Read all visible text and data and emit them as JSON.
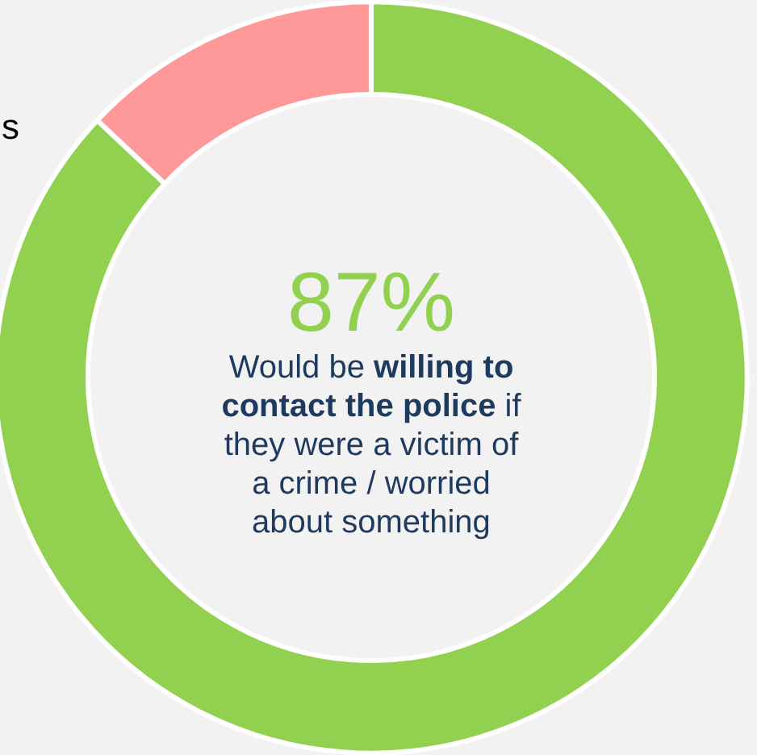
{
  "chart_data": {
    "type": "donut",
    "categories": [
      null,
      null
    ],
    "values": [
      87,
      13
    ],
    "colors": [
      "#92d050",
      "#ff9999"
    ],
    "value_labels": [
      "87%",
      null
    ],
    "annotations": [
      "Would be ",
      "willing to contact the police",
      " if they were a victim of a crime / worried about something",
      "s"
    ]
  }
}
